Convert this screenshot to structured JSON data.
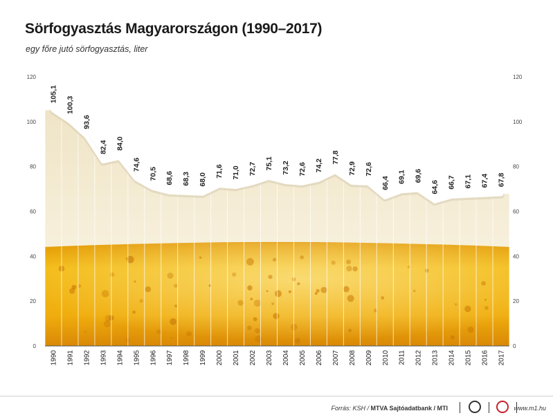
{
  "chart_data": {
    "type": "line",
    "title": "Sörfogyasztás Magyarországon (1990–2017)",
    "subtitle": "egy főre jutó sörfogyasztás, liter",
    "categories": [
      "1990",
      "1991",
      "1992",
      "1993",
      "1994",
      "1995",
      "1996",
      "1997",
      "1998",
      "1999",
      "2000",
      "2001",
      "2002",
      "2003",
      "2004",
      "2005",
      "2006",
      "2007",
      "2008",
      "2009",
      "2010",
      "2011",
      "2012",
      "2013",
      "2014",
      "2015",
      "2016",
      "2017"
    ],
    "series": [
      {
        "values": [
          105.1,
          100.3,
          93.6,
          82.4,
          84.0,
          74.6,
          70.5,
          68.6,
          68.3,
          68.0,
          71.6,
          71.0,
          72.7,
          75.1,
          73.2,
          72.6,
          74.2,
          77.8,
          72.9,
          72.6,
          66.4,
          69.1,
          69.6,
          64.6,
          66.7,
          67.1,
          67.4,
          67.8
        ],
        "labels": [
          "105,1",
          "100,3",
          "93,6",
          "82,4",
          "84,0",
          "74,6",
          "70,5",
          "68,6",
          "68,3",
          "68,0",
          "71,6",
          "71,0",
          "72,7",
          "75,1",
          "73,2",
          "72,6",
          "74,2",
          "77,8",
          "72,9",
          "72,6",
          "66,4",
          "69,1",
          "69,6",
          "64,6",
          "66,7",
          "67,1",
          "67,4",
          "67,8"
        ]
      }
    ],
    "ylim": [
      0,
      120
    ],
    "yticks": [
      "0",
      "20",
      "40",
      "60",
      "80",
      "100",
      "120"
    ],
    "ytick_values": [
      0,
      20,
      40,
      60,
      80,
      100,
      120
    ],
    "grid": "vertical",
    "fill_level": 46,
    "colors": {
      "line": "#ffffff",
      "foam": "#f4ecd6",
      "beer_top": "#e8a60c",
      "beer_mid": "#f2b812",
      "beer_bottom": "#d98a06",
      "bubble": "#c97a05"
    }
  },
  "footer": {
    "source_prefix": "Forrás: KSH / ",
    "source_bold": "MTVA Sajtóadatbank / MTI",
    "logo_mtva": "mtva-logo",
    "logo_m1": "m1-logo",
    "site": "www.m1.hu"
  }
}
